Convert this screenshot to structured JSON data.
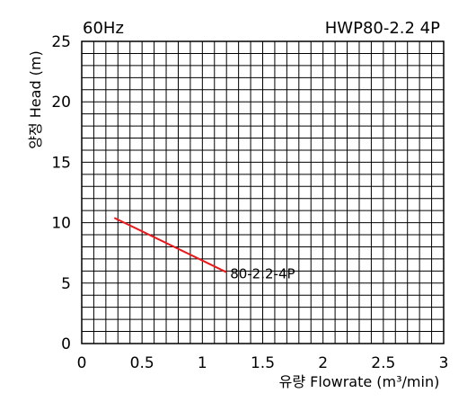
{
  "header": {
    "left": "60Hz",
    "right": "HWP80-2.2 4P"
  },
  "chart_data": {
    "type": "line",
    "title": "",
    "xlabel": "유량 Flowrate (m³/min)",
    "ylabel": "양정 Head (m)",
    "xlim": [
      0,
      3
    ],
    "ylim": [
      0,
      25
    ],
    "grid": true,
    "x_ticks": [
      "0",
      "0.5",
      "1",
      "1.5",
      "2",
      "2.5",
      "3"
    ],
    "y_ticks": [
      "0",
      "5",
      "10",
      "15",
      "20",
      "25"
    ],
    "series": [
      {
        "name": "80-2.2-4P",
        "color": "#e8191a",
        "points": [
          [
            0.27,
            10.4
          ],
          [
            1.2,
            5.9
          ]
        ]
      }
    ]
  }
}
